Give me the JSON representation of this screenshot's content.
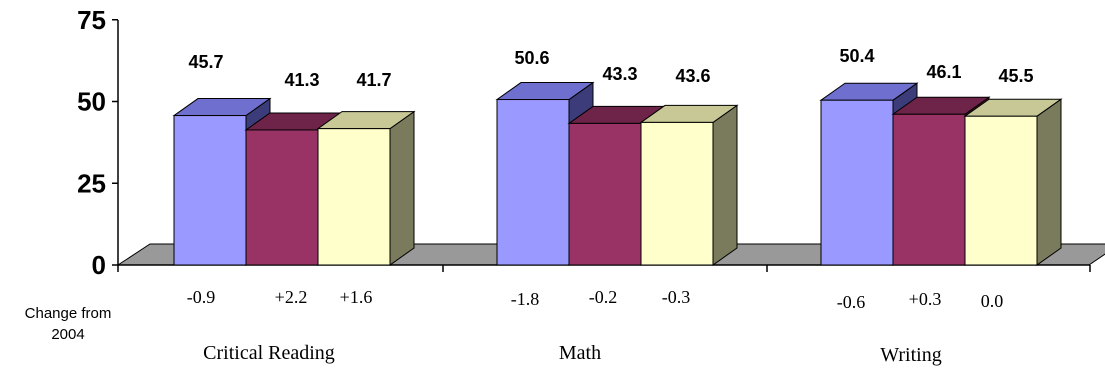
{
  "chart_data": {
    "type": "bar",
    "title": "",
    "xlabel": "",
    "ylabel": "",
    "ylim": [
      0,
      75
    ],
    "yticks": [
      0,
      25,
      50,
      75
    ],
    "categories": [
      "Critical Reading",
      "Math",
      "Writing"
    ],
    "series": [
      {
        "values": [
          45.7,
          50.6,
          50.4
        ],
        "color": "#9999ff",
        "top_color": "#6f6fcf",
        "side_color": "#3c3c7a"
      },
      {
        "values": [
          41.3,
          43.3,
          46.1
        ],
        "color": "#993366",
        "top_color": "#6e2348",
        "side_color": "#4d1530"
      },
      {
        "values": [
          41.7,
          43.6,
          45.5
        ],
        "color": "#ffffcc",
        "top_color": "#c8c896",
        "side_color": "#7a7a5c"
      }
    ],
    "data_labels": [
      [
        "45.7",
        "41.3",
        "41.7"
      ],
      [
        "50.6",
        "43.3",
        "43.6"
      ],
      [
        "50.4",
        "46.1",
        "45.5"
      ]
    ],
    "change_row_label": "Change from 2004",
    "change_values": [
      [
        "-0.9",
        "+2.2",
        "+1.6"
      ],
      [
        "-1.8",
        "-0.2",
        "-0.3"
      ],
      [
        "-0.6",
        "+0.3",
        "0.0"
      ]
    ],
    "legend": "none",
    "grid": false,
    "floor_color": "#999999"
  }
}
